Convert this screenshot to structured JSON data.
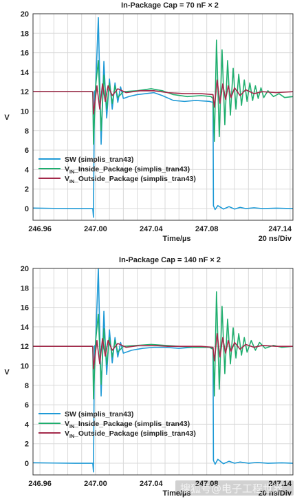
{
  "chart_data": [
    {
      "type": "line",
      "title": "In-Package Cap = 70 nF × 2",
      "xlabel": "Time/µs",
      "ylabel": "V",
      "xlim": [
        246.955,
        247.142
      ],
      "ylim": [
        -1.2,
        20
      ],
      "xticks": [
        "246.96",
        "247.00",
        "247.04",
        "247.08",
        "247.14"
      ],
      "yticks": [
        0,
        2,
        4,
        6,
        8,
        10,
        12,
        14,
        16,
        18,
        20
      ],
      "grid": true,
      "div_note": "20 ns/Div",
      "legend_position": "lower-left",
      "legend": [
        {
          "main": "SW (simplis_tran43)",
          "color": "#1f9ad6"
        },
        {
          "pre": "V",
          "sub": "IN",
          "main": "_Inside_Package (simplis_tran43)",
          "color": "#1fae6e"
        },
        {
          "pre": "V",
          "sub": "IN",
          "main": "_Outside_Package (simplis_tran43)",
          "color": "#a3294a"
        }
      ],
      "series": [
        {
          "color": "#1f9ad6",
          "points": [
            [
              246.955,
              0.05
            ],
            [
              246.97,
              0.02
            ],
            [
              246.985,
              0.0
            ],
            [
              246.998,
              0.0
            ],
            [
              246.9985,
              -0.9
            ],
            [
              246.9992,
              12
            ],
            [
              247.0,
              12.2
            ],
            [
              247.002,
              19.6
            ],
            [
              247.004,
              6.6
            ],
            [
              247.006,
              15.1
            ],
            [
              247.008,
              9.3
            ],
            [
              247.01,
              13.3
            ],
            [
              247.012,
              10.2
            ],
            [
              247.014,
              12.9
            ],
            [
              247.016,
              10.9
            ],
            [
              247.018,
              12.5
            ],
            [
              247.02,
              11.3
            ],
            [
              247.024,
              11.5
            ],
            [
              247.03,
              11.7
            ],
            [
              247.036,
              11.8
            ],
            [
              247.042,
              11.9
            ],
            [
              247.048,
              11.6
            ],
            [
              247.056,
              11.1
            ],
            [
              247.064,
              11.0
            ],
            [
              247.072,
              11.1
            ],
            [
              247.082,
              11.0
            ],
            [
              247.0845,
              10.9
            ],
            [
              247.0848,
              0.3
            ],
            [
              247.086,
              -0.1
            ],
            [
              247.088,
              0.3
            ],
            [
              247.092,
              -0.05
            ],
            [
              247.096,
              0.2
            ],
            [
              247.1,
              -0.05
            ],
            [
              247.104,
              0.12
            ],
            [
              247.108,
              0.0
            ],
            [
              247.114,
              0.08
            ],
            [
              247.12,
              0.0
            ],
            [
              247.13,
              0.04
            ],
            [
              247.142,
              0.0
            ]
          ]
        },
        {
          "color": "#1fae6e",
          "points": [
            [
              246.955,
              12.0
            ],
            [
              246.97,
              12.0
            ],
            [
              246.998,
              12.0
            ],
            [
              246.9985,
              6.6
            ],
            [
              247.0,
              12.5
            ],
            [
              247.002,
              15.2
            ],
            [
              247.004,
              8.0
            ],
            [
              247.006,
              13.7
            ],
            [
              247.008,
              10.2
            ],
            [
              247.01,
              12.9
            ],
            [
              247.012,
              10.8
            ],
            [
              247.014,
              12.6
            ],
            [
              247.016,
              11.4
            ],
            [
              247.02,
              12.0
            ],
            [
              247.03,
              12.1
            ],
            [
              247.04,
              12.3
            ],
            [
              247.048,
              12.1
            ],
            [
              247.056,
              11.7
            ],
            [
              247.066,
              11.5
            ],
            [
              247.076,
              11.6
            ],
            [
              247.083,
              11.5
            ],
            [
              247.0845,
              11.3
            ],
            [
              247.0855,
              6.9
            ],
            [
              247.087,
              17.3
            ],
            [
              247.089,
              7.4
            ],
            [
              247.091,
              16.3
            ],
            [
              247.093,
              8.6
            ],
            [
              247.095,
              15.2
            ],
            [
              247.097,
              9.6
            ],
            [
              247.099,
              14.4
            ],
            [
              247.101,
              10.2
            ],
            [
              247.103,
              13.8
            ],
            [
              247.105,
              10.6
            ],
            [
              247.107,
              13.2
            ],
            [
              247.109,
              11.0
            ],
            [
              247.111,
              12.9
            ],
            [
              247.113,
              11.1
            ],
            [
              247.115,
              12.6
            ],
            [
              247.117,
              11.3
            ],
            [
              247.119,
              12.4
            ],
            [
              247.121,
              11.4
            ],
            [
              247.124,
              12.1
            ],
            [
              247.128,
              11.5
            ],
            [
              247.132,
              11.8
            ],
            [
              247.136,
              11.4
            ],
            [
              247.142,
              11.5
            ]
          ]
        },
        {
          "color": "#a3294a",
          "points": [
            [
              246.955,
              12.0
            ],
            [
              246.97,
              12.0
            ],
            [
              246.998,
              12.0
            ],
            [
              246.9985,
              9.7
            ],
            [
              247.001,
              12.6
            ],
            [
              247.003,
              10.2
            ],
            [
              247.005,
              12.8
            ],
            [
              247.007,
              11.0
            ],
            [
              247.009,
              12.6
            ],
            [
              247.012,
              11.6
            ],
            [
              247.016,
              12.3
            ],
            [
              247.022,
              11.9
            ],
            [
              247.032,
              12.1
            ],
            [
              247.042,
              12.1
            ],
            [
              247.052,
              11.9
            ],
            [
              247.064,
              11.8
            ],
            [
              247.076,
              11.8
            ],
            [
              247.0845,
              11.7
            ],
            [
              247.0855,
              10.4
            ],
            [
              247.0875,
              13.2
            ],
            [
              247.0895,
              10.8
            ],
            [
              247.0915,
              12.8
            ],
            [
              247.0935,
              11.2
            ],
            [
              247.0955,
              12.6
            ],
            [
              247.0975,
              11.4
            ],
            [
              247.1,
              12.4
            ],
            [
              247.104,
              11.6
            ],
            [
              247.108,
              12.2
            ],
            [
              247.114,
              11.8
            ],
            [
              247.12,
              12.0
            ],
            [
              247.13,
              11.9
            ],
            [
              247.142,
              12.0
            ]
          ]
        }
      ]
    },
    {
      "type": "line",
      "title": "In-Package Cap = 140 nF × 2",
      "xlabel": "Time/µs",
      "ylabel": "V",
      "xlim": [
        246.955,
        247.142
      ],
      "ylim": [
        -1.2,
        20
      ],
      "xticks": [
        "246.96",
        "247.00",
        "247.04",
        "247.08",
        "247.14"
      ],
      "yticks": [
        0,
        2,
        4,
        6,
        8,
        10,
        12,
        14,
        16,
        18,
        20
      ],
      "grid": true,
      "div_note": "20 ns/Div",
      "legend_position": "lower-left",
      "legend": [
        {
          "main": "SW (simplis_tran43)",
          "color": "#1f9ad6"
        },
        {
          "pre": "V",
          "sub": "IN",
          "main": "_Inside_Package (simplis_tran43)",
          "color": "#1fae6e"
        },
        {
          "pre": "V",
          "sub": "IN",
          "main": "_Outside_Package (simplis_tran43)",
          "color": "#a3294a"
        }
      ],
      "series": [
        {
          "color": "#1f9ad6",
          "points": [
            [
              246.955,
              0.05
            ],
            [
              246.97,
              0.02
            ],
            [
              246.985,
              0.0
            ],
            [
              246.998,
              0.0
            ],
            [
              246.9985,
              -0.9
            ],
            [
              246.9992,
              12
            ],
            [
              247.0,
              12.2
            ],
            [
              247.002,
              20.0
            ],
            [
              247.004,
              6.9
            ],
            [
              247.006,
              15.6
            ],
            [
              247.008,
              9.1
            ],
            [
              247.01,
              13.7
            ],
            [
              247.012,
              10.3
            ],
            [
              247.014,
              12.9
            ],
            [
              247.016,
              10.9
            ],
            [
              247.018,
              12.4
            ],
            [
              247.02,
              11.3
            ],
            [
              247.026,
              11.6
            ],
            [
              247.034,
              11.8
            ],
            [
              247.042,
              11.9
            ],
            [
              247.05,
              11.9
            ],
            [
              247.06,
              11.8
            ],
            [
              247.07,
              11.9
            ],
            [
              247.082,
              11.9
            ],
            [
              247.0845,
              11.8
            ],
            [
              247.0848,
              0.3
            ],
            [
              247.086,
              -0.1
            ],
            [
              247.088,
              0.4
            ],
            [
              247.092,
              -0.05
            ],
            [
              247.096,
              0.2
            ],
            [
              247.1,
              0.0
            ],
            [
              247.104,
              0.12
            ],
            [
              247.11,
              0.0
            ],
            [
              247.116,
              0.08
            ],
            [
              247.124,
              0.0
            ],
            [
              247.134,
              0.04
            ],
            [
              247.142,
              0.0
            ]
          ]
        },
        {
          "color": "#1fae6e",
          "points": [
            [
              246.955,
              12.0
            ],
            [
              246.97,
              12.0
            ],
            [
              246.998,
              12.0
            ],
            [
              246.9985,
              6.6
            ],
            [
              247.0,
              12.5
            ],
            [
              247.002,
              15.3
            ],
            [
              247.004,
              8.1
            ],
            [
              247.006,
              13.8
            ],
            [
              247.008,
              10.1
            ],
            [
              247.01,
              12.9
            ],
            [
              247.012,
              10.9
            ],
            [
              247.014,
              12.6
            ],
            [
              247.016,
              11.4
            ],
            [
              247.02,
              12.0
            ],
            [
              247.03,
              12.1
            ],
            [
              247.04,
              12.2
            ],
            [
              247.05,
              12.1
            ],
            [
              247.06,
              12.0
            ],
            [
              247.072,
              11.9
            ],
            [
              247.082,
              11.9
            ],
            [
              247.0845,
              11.7
            ],
            [
              247.0855,
              6.9
            ],
            [
              247.087,
              17.6
            ],
            [
              247.089,
              7.6
            ],
            [
              247.091,
              16.1
            ],
            [
              247.093,
              9.2
            ],
            [
              247.095,
              14.8
            ],
            [
              247.097,
              10.2
            ],
            [
              247.099,
              13.9
            ],
            [
              247.101,
              10.8
            ],
            [
              247.103,
              13.3
            ],
            [
              247.105,
              11.1
            ],
            [
              247.107,
              12.9
            ],
            [
              247.109,
              11.4
            ],
            [
              247.112,
              12.6
            ],
            [
              247.115,
              11.6
            ],
            [
              247.118,
              12.4
            ],
            [
              247.122,
              11.8
            ],
            [
              247.128,
              12.1
            ],
            [
              247.134,
              11.9
            ],
            [
              247.142,
              12.0
            ]
          ]
        },
        {
          "color": "#a3294a",
          "points": [
            [
              246.955,
              12.0
            ],
            [
              246.97,
              12.0
            ],
            [
              246.998,
              12.0
            ],
            [
              246.9985,
              9.7
            ],
            [
              247.001,
              12.6
            ],
            [
              247.003,
              10.2
            ],
            [
              247.005,
              12.8
            ],
            [
              247.007,
              11.0
            ],
            [
              247.009,
              12.6
            ],
            [
              247.012,
              11.6
            ],
            [
              247.016,
              12.3
            ],
            [
              247.022,
              11.9
            ],
            [
              247.032,
              12.1
            ],
            [
              247.042,
              12.1
            ],
            [
              247.052,
              12.0
            ],
            [
              247.064,
              12.0
            ],
            [
              247.076,
              12.0
            ],
            [
              247.0845,
              11.9
            ],
            [
              247.0855,
              10.5
            ],
            [
              247.0875,
              13.3
            ],
            [
              247.0895,
              10.9
            ],
            [
              247.0915,
              12.9
            ],
            [
              247.0935,
              11.3
            ],
            [
              247.0955,
              12.6
            ],
            [
              247.0975,
              11.5
            ],
            [
              247.1,
              12.4
            ],
            [
              247.104,
              11.7
            ],
            [
              247.108,
              12.2
            ],
            [
              247.114,
              11.9
            ],
            [
              247.12,
              12.1
            ],
            [
              247.13,
              12.0
            ],
            [
              247.142,
              12.0
            ]
          ]
        }
      ]
    }
  ],
  "watermark": "搜狐号@电子工程世界"
}
